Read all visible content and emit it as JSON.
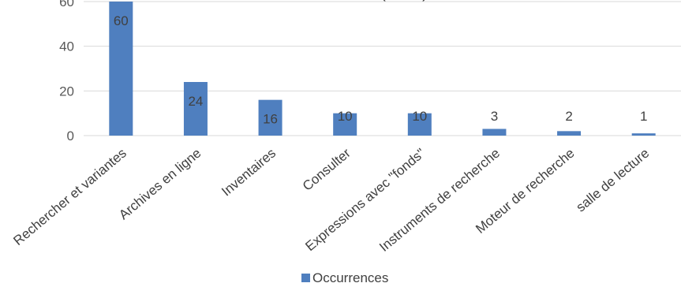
{
  "chart_data": {
    "type": "bar",
    "title": "(… …)",
    "xlabel": "",
    "ylabel": "",
    "ylim": [
      0,
      60
    ],
    "yticks": [
      0,
      20,
      40,
      60
    ],
    "grid": true,
    "legend_position": "bottom",
    "categories": [
      "Rechercher et variantes",
      "Archives en ligne",
      "Inventaires",
      "Consulter",
      "Expressions avec \"fonds\"",
      "Instruments de recherche",
      "Moteur de recherche",
      "salle de lecture"
    ],
    "series": [
      {
        "name": "Occurrences",
        "color": "#4f7fbf",
        "values": [
          60,
          24,
          16,
          10,
          10,
          3,
          2,
          1
        ]
      }
    ],
    "data_labels": [
      "60",
      "24",
      "16",
      "10",
      "10",
      "3",
      "2",
      "1"
    ]
  }
}
